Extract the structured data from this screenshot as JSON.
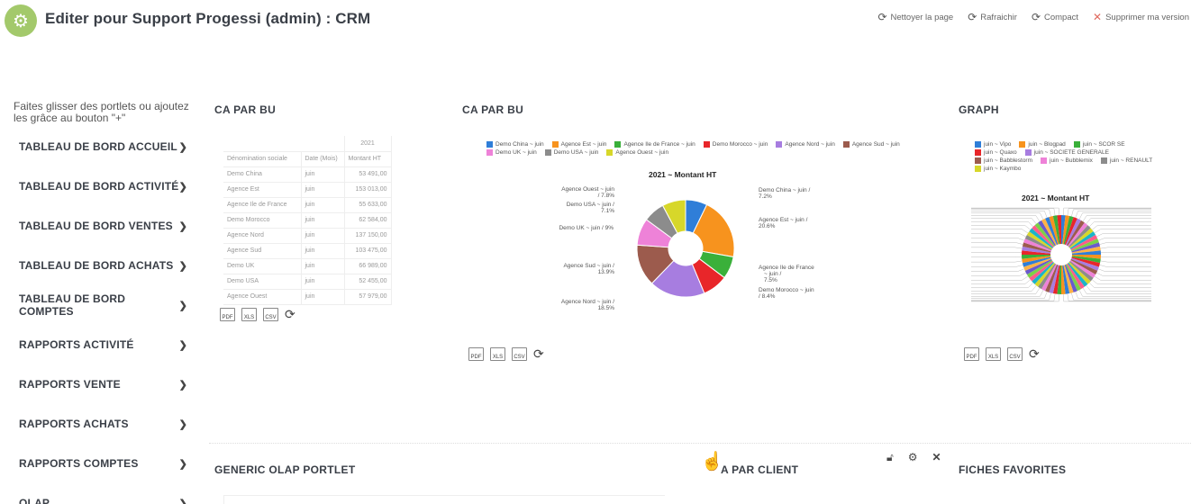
{
  "header": {
    "title": "Editer pour Support Progessi (admin) : CRM",
    "actions": [
      {
        "label": "Nettoyer la page",
        "icon": "refresh-icon"
      },
      {
        "label": "Rafraichir",
        "icon": "refresh-icon"
      },
      {
        "label": "Compact",
        "icon": "refresh-icon"
      },
      {
        "label": "Supprimer ma version",
        "icon": "close-icon"
      }
    ]
  },
  "sidebar": {
    "hint": "Faites glisser des portlets ou ajoutez les grâce au bouton \"+\"",
    "items": [
      "TABLEAU DE BORD ACCUEIL",
      "TABLEAU DE BORD ACTIVITÉ",
      "TABLEAU DE BORD VENTES",
      "TABLEAU DE BORD ACHATS",
      "TABLEAU DE BORD COMPTES",
      "RAPPORTS ACTIVITÉ",
      "RAPPORTS VENTE",
      "RAPPORTS ACHATS",
      "RAPPORTS COMPTES",
      "OLAP"
    ]
  },
  "portlets": {
    "ca_table": {
      "title": "CA PAR BU",
      "year": "2021",
      "headers": [
        "Dénomination sociale",
        "Date (Mois)",
        "Montant HT"
      ],
      "rows": [
        [
          "Demo China",
          "juin",
          "53 491,00"
        ],
        [
          "Agence Est",
          "juin",
          "153 013,00"
        ],
        [
          "Agence Ile de France",
          "juin",
          "55 633,00"
        ],
        [
          "Demo Morocco",
          "juin",
          "62 584,00"
        ],
        [
          "Agence Nord",
          "juin",
          "137 150,00"
        ],
        [
          "Agence Sud",
          "juin",
          "103 475,00"
        ],
        [
          "Demo UK",
          "juin",
          "66 989,00"
        ],
        [
          "Demo USA",
          "juin",
          "52 455,00"
        ],
        [
          "Agence Ouest",
          "juin",
          "57 979,00"
        ]
      ]
    },
    "ca_chart": {
      "title": "CA PAR BU",
      "legend": [
        {
          "label": "Demo China ~ juin",
          "color": "#2f7ed8"
        },
        {
          "label": "Agence Est ~ juin",
          "color": "#f7931e"
        },
        {
          "label": "Agence Ile de France ~ juin",
          "color": "#3ab03a"
        },
        {
          "label": "Demo Morocco ~ juin",
          "color": "#e8262a"
        },
        {
          "label": "Agence Nord ~ juin",
          "color": "#a77de0"
        },
        {
          "label": "Agence Sud ~ juin",
          "color": "#9c5b4d"
        },
        {
          "label": "Demo UK ~ juin",
          "color": "#ee82d8"
        },
        {
          "label": "Demo USA ~ juin",
          "color": "#8c8c8c"
        },
        {
          "label": "Agence Ouest ~ juin",
          "color": "#d7d72a"
        }
      ],
      "labels": {
        "china": [
          "Demo China ~ juin /",
          "7.2%"
        ],
        "est": [
          "Agence Est ~ juin /",
          "20.6%"
        ],
        "idf": [
          "Agence Ile de France",
          "~ juin /",
          "7.5%"
        ],
        "morocco": [
          "Demo Morocco ~ juin",
          "/ 8.4%"
        ],
        "nord": [
          "Agence Nord ~ juin /",
          "18.5%"
        ],
        "sud": [
          "Agence Sud ~ juin /",
          "13.9%"
        ],
        "uk": [
          "Demo UK ~ juin / 9%"
        ],
        "usa": [
          "Demo USA ~ juin /",
          "7.1%"
        ],
        "ouest": [
          "Agence Ouest ~ juin",
          "/ 7.8%"
        ]
      }
    },
    "graph": {
      "title": "GRAPH",
      "legend": [
        {
          "label": "juin ~ Vipo",
          "color": "#2f7ed8"
        },
        {
          "label": "juin ~ Blogpad",
          "color": "#f7931e"
        },
        {
          "label": "juin ~ SCOR SE",
          "color": "#3ab03a"
        },
        {
          "label": "juin ~ Quaxo",
          "color": "#e8262a"
        },
        {
          "label": "juin ~ SOCIETE GENERALE",
          "color": "#a77de0"
        },
        {
          "label": "juin ~ Babblestorm",
          "color": "#9c5b4d"
        },
        {
          "label": "juin ~ Bubblemix",
          "color": "#ee82d8"
        },
        {
          "label": "juin ~ RENAULT",
          "color": "#8c8c8c"
        },
        {
          "label": "juin ~ Kaymbo",
          "color": "#d7d72a"
        }
      ]
    },
    "olap": {
      "title": "GENERIC OLAP PORTLET"
    },
    "client": {
      "title": "A PAR CLIENT"
    },
    "favorites": {
      "title": "FICHES FAVORITES"
    }
  },
  "chart_data": {
    "type": "pie",
    "title": "2021 ~ Montant HT",
    "categories": [
      "Demo China ~ juin",
      "Agence Est ~ juin",
      "Agence Ile de France ~ juin",
      "Demo Morocco ~ juin",
      "Agence Nord ~ juin",
      "Agence Sud ~ juin",
      "Demo UK ~ juin",
      "Demo USA ~ juin",
      "Agence Ouest ~ juin"
    ],
    "values": [
      7.2,
      20.6,
      7.5,
      8.4,
      18.5,
      13.9,
      9.0,
      7.1,
      7.8
    ],
    "colors": [
      "#2f7ed8",
      "#f7931e",
      "#3ab03a",
      "#e8262a",
      "#a77de0",
      "#9c5b4d",
      "#ee82d8",
      "#8c8c8c",
      "#d7d72a"
    ],
    "graph_title": "2021 ~ Montant HT"
  },
  "export": {
    "pdf": "PDF",
    "xls": "XLS",
    "csv": "CSV"
  }
}
